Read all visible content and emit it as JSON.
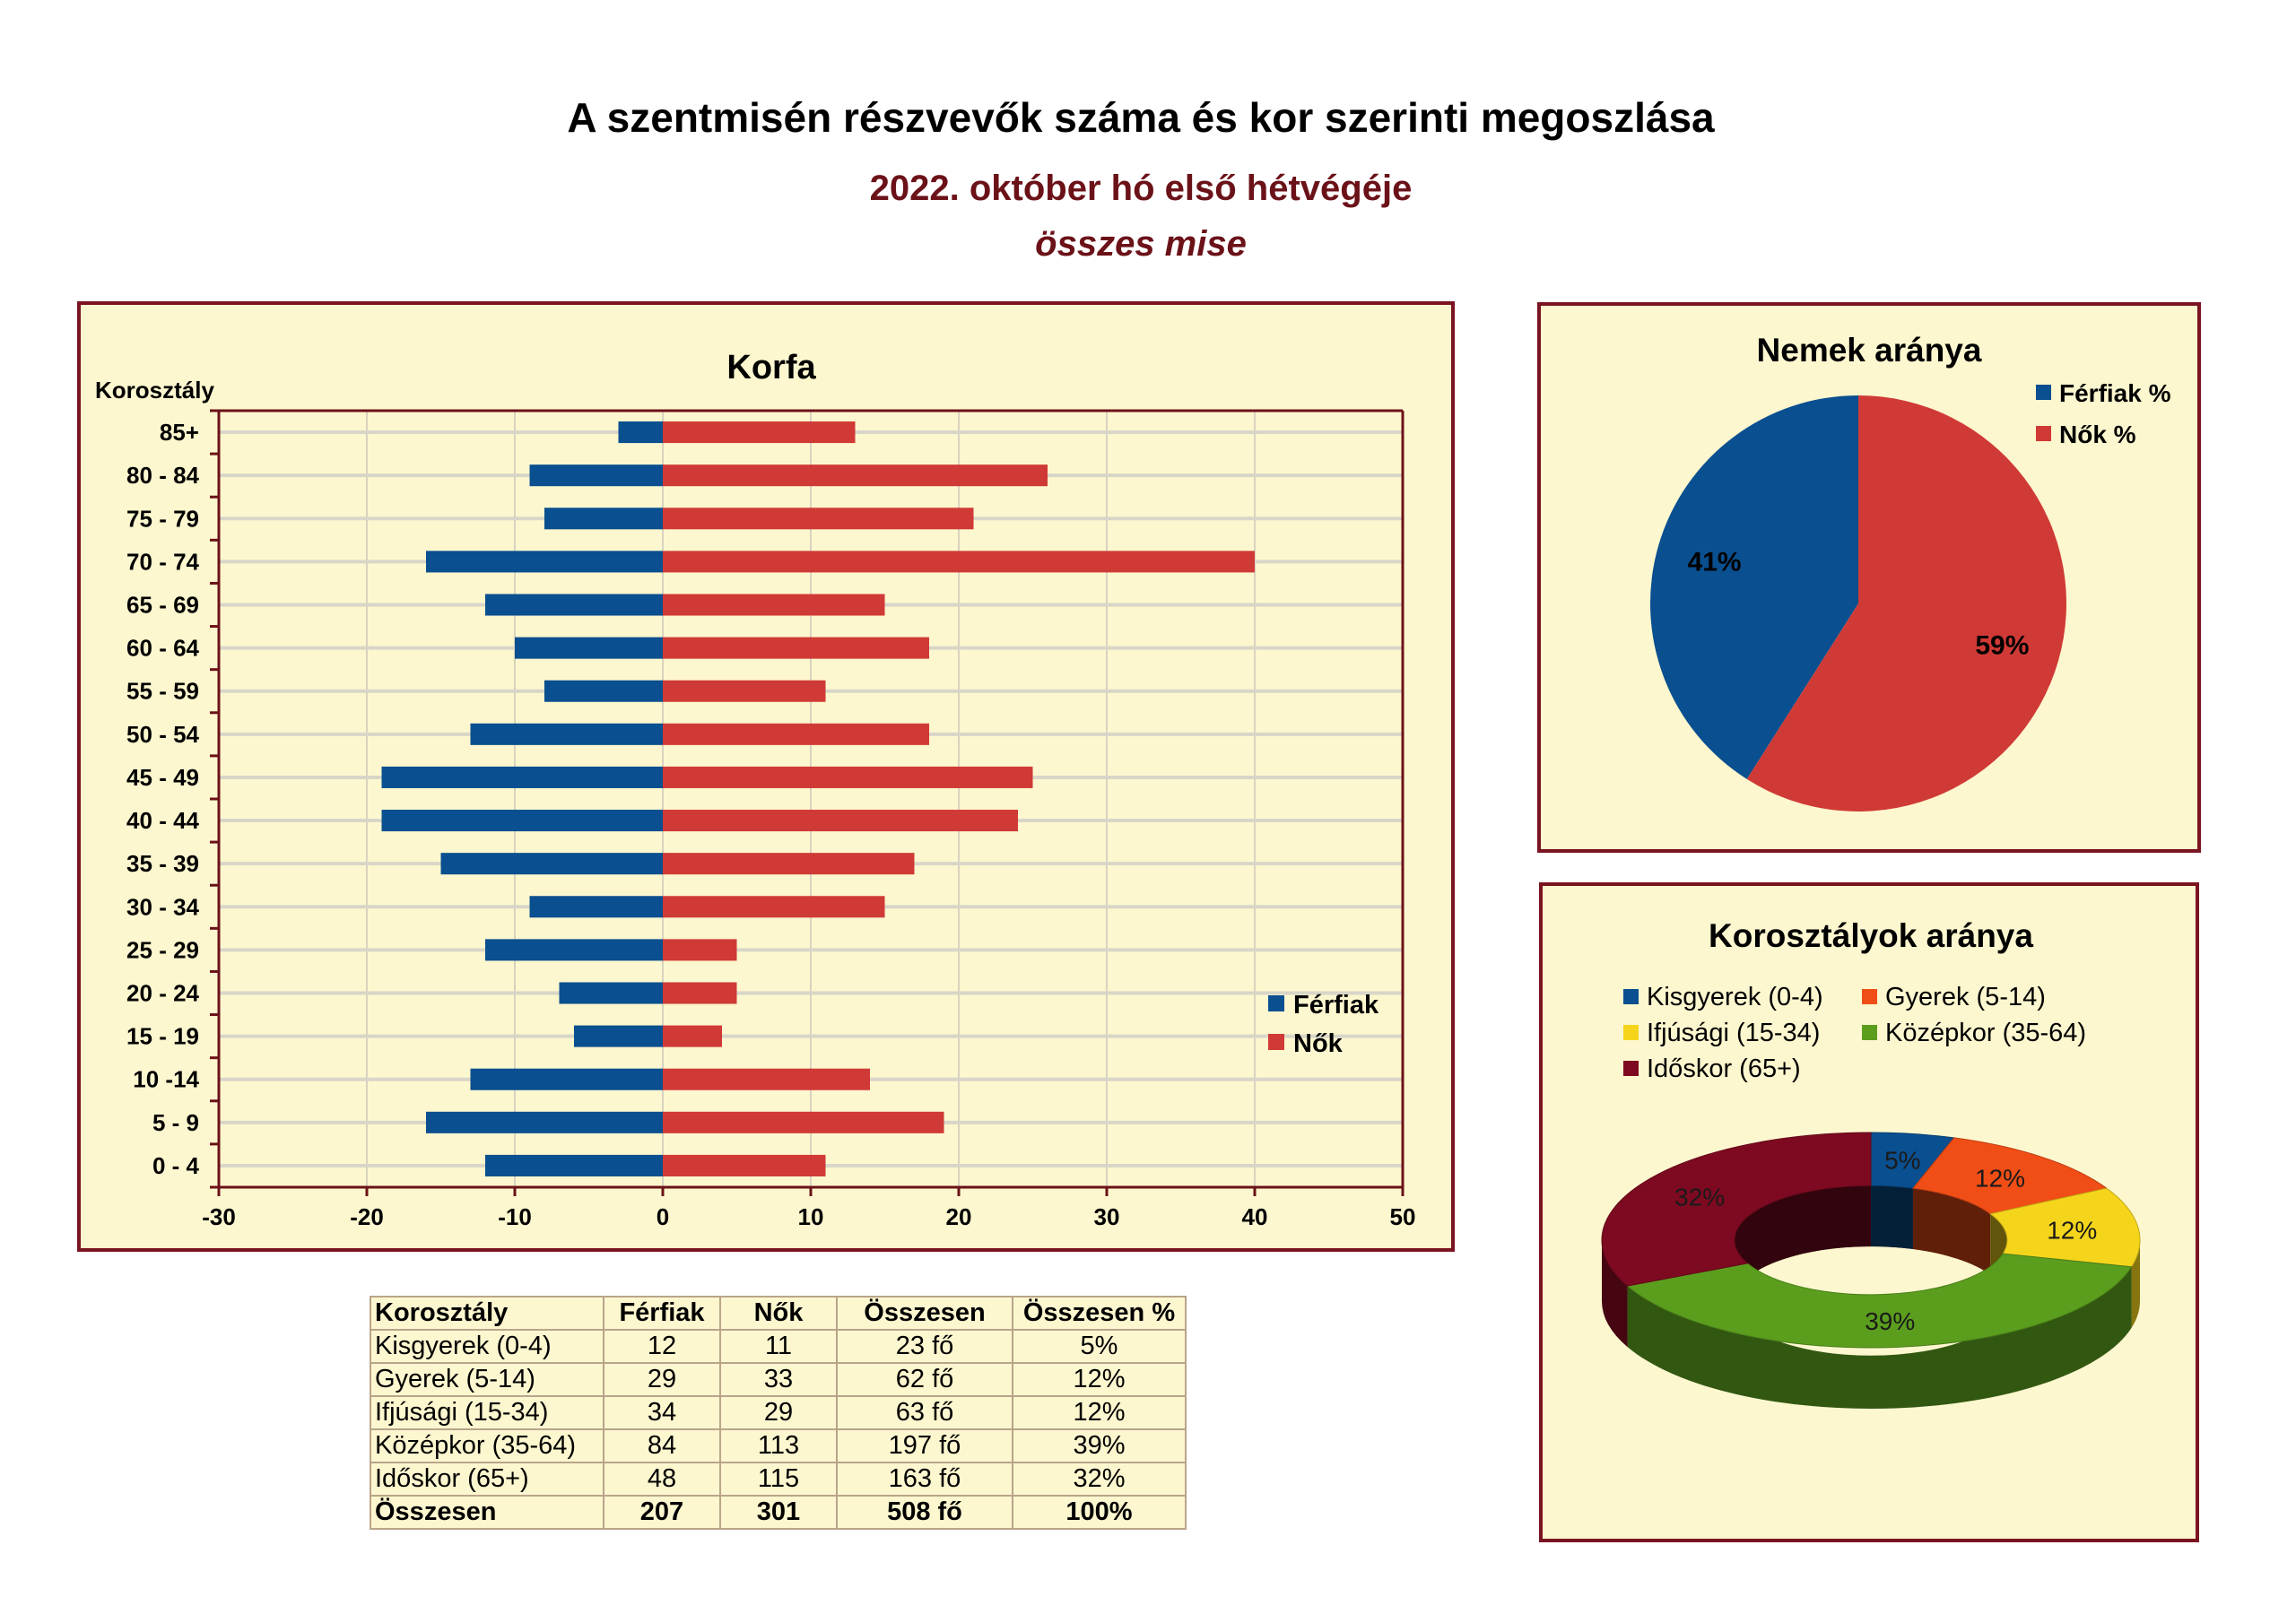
{
  "header": {
    "title": "A szentmisén részvevők száma és kor szerinti megoszlása",
    "subtitle": "2022. október hó első hétvégéje",
    "subtitle2": "összes mise"
  },
  "colors": {
    "men": "#0a4f8f",
    "women": "#d03a36",
    "panel_bg": "#fdf7cf",
    "border": "#7a1420"
  },
  "chart_data": [
    {
      "type": "bar",
      "orientation": "horizontal",
      "title": "Korfa",
      "ylabel": "Korosztály",
      "xlabel": "",
      "xlim": [
        -30,
        50
      ],
      "xticks": [
        -30,
        -20,
        -10,
        0,
        10,
        20,
        30,
        40,
        50
      ],
      "grid": true,
      "legend": "right",
      "categories": [
        "85+",
        "80 - 84",
        "75 - 79",
        "70 - 74",
        "65 - 69",
        "60 - 64",
        "55 - 59",
        "50 - 54",
        "45 - 49",
        "40 - 44",
        "35 - 39",
        "30 - 34",
        "25 - 29",
        "20 - 24",
        "15 - 19",
        "10 -14",
        "5 - 9",
        "0 - 4"
      ],
      "series": [
        {
          "name": "Férfiak",
          "color": "#0a4f8f",
          "values": [
            -3,
            -9,
            -8,
            -16,
            -12,
            -10,
            -8,
            -13,
            -19,
            -19,
            -15,
            -9,
            -12,
            -7,
            -6,
            -13,
            -16,
            -12
          ]
        },
        {
          "name": "Nők",
          "color": "#d03a36",
          "values": [
            13,
            26,
            21,
            40,
            15,
            18,
            11,
            18,
            25,
            24,
            17,
            15,
            5,
            5,
            4,
            14,
            19,
            11
          ]
        }
      ]
    },
    {
      "type": "pie",
      "title": "Nemek aránya",
      "legend": "top-right",
      "series": [
        {
          "name": "Férfiak %",
          "value": 41,
          "label": "41%",
          "color": "#0a4f8f"
        },
        {
          "name": "Nők %",
          "value": 59,
          "label": "59%",
          "color": "#d03a36"
        }
      ]
    },
    {
      "type": "pie",
      "variant": "donut-3d",
      "title": "Korosztályok aránya",
      "legend": "top",
      "series": [
        {
          "name": "Kisgyerek (0-4)",
          "value": 5,
          "label": "5%",
          "color": "#0a4f8f"
        },
        {
          "name": "Gyerek (5-14)",
          "value": 12,
          "label": "12%",
          "color": "#f04e16"
        },
        {
          "name": "Ifjúsági (15-34)",
          "value": 12,
          "label": "12%",
          "color": "#f5d51c"
        },
        {
          "name": "Középkor (35-64)",
          "value": 39,
          "label": "39%",
          "color": "#5b9e1e"
        },
        {
          "name": "Időskor (65+)",
          "value": 32,
          "label": "32%",
          "color": "#7d0a21"
        }
      ]
    },
    {
      "type": "table",
      "headers": [
        "Korosztály",
        "Férfiak",
        "Nők",
        "Összesen",
        "Összesen %"
      ],
      "rows": [
        [
          "Kisgyerek (0-4)",
          "12",
          "11",
          "23 fő",
          "5%"
        ],
        [
          "Gyerek (5-14)",
          "29",
          "33",
          "62 fő",
          "12%"
        ],
        [
          "Ifjúsági (15-34)",
          "34",
          "29",
          "63 fő",
          "12%"
        ],
        [
          "Középkor (35-64)",
          "84",
          "113",
          "197 fő",
          "39%"
        ],
        [
          "Időskor (65+)",
          "48",
          "115",
          "163 fő",
          "32%"
        ],
        [
          "Összesen",
          "207",
          "301",
          "508 fő",
          "100%"
        ]
      ]
    }
  ]
}
